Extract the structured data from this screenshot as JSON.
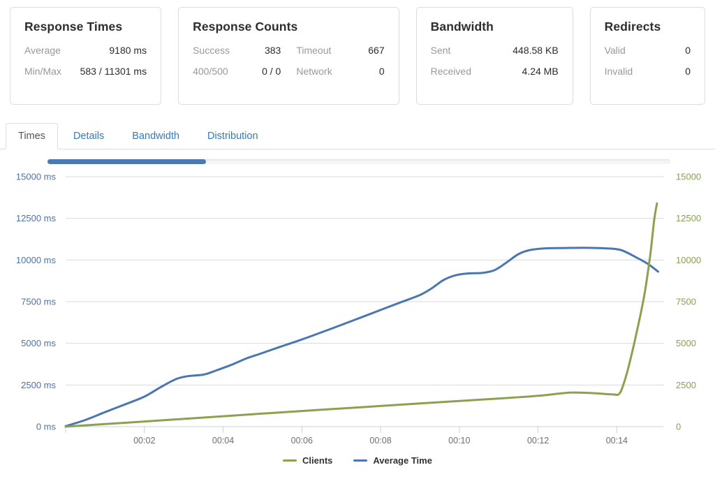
{
  "cards": {
    "response_times": {
      "title": "Response Times",
      "rows": [
        {
          "label": "Average",
          "value": "9180 ms"
        },
        {
          "label": "Min/Max",
          "value": "583 / 11301 ms"
        }
      ]
    },
    "response_counts": {
      "title": "Response Counts",
      "cells": [
        {
          "label": "Success",
          "value": "383"
        },
        {
          "label": "Timeout",
          "value": "667"
        },
        {
          "label": "400/500",
          "value": "0 / 0"
        },
        {
          "label": "Network",
          "value": "0"
        }
      ]
    },
    "bandwidth": {
      "title": "Bandwidth",
      "rows": [
        {
          "label": "Sent",
          "value": "448.58 KB"
        },
        {
          "label": "Received",
          "value": "4.24 MB"
        }
      ]
    },
    "redirects": {
      "title": "Redirects",
      "rows": [
        {
          "label": "Valid",
          "value": "0"
        },
        {
          "label": "Invalid",
          "value": "0"
        }
      ]
    }
  },
  "tabs": [
    {
      "label": "Times",
      "active": true
    },
    {
      "label": "Details",
      "active": false
    },
    {
      "label": "Bandwidth",
      "active": false
    },
    {
      "label": "Distribution",
      "active": false
    }
  ],
  "progress": {
    "percent": 25.5,
    "fill_color": "#4a79b6",
    "track_color": "#f5f5f5"
  },
  "chart_data": {
    "type": "line",
    "title": "",
    "grid": true,
    "legend_position": "bottom-center",
    "x_axis": {
      "unit": "mm:ss elapsed",
      "tick_labels": [
        "00:02",
        "00:04",
        "00:06",
        "00:08",
        "00:10",
        "00:12",
        "00:14"
      ],
      "tick_minutes": [
        2,
        4,
        6,
        8,
        10,
        12,
        14
      ],
      "range_minutes": [
        0,
        15.2
      ],
      "label_color": "#6e6e6e",
      "axis_color": "#c5cfe2",
      "grid_color": "#d9d9d9"
    },
    "y_left": {
      "title": "Average Time (ms)",
      "tick_values": [
        0,
        2500,
        5000,
        7500,
        10000,
        12500,
        15000
      ],
      "tick_suffix": " ms",
      "range": [
        0,
        15000
      ],
      "color": "#4e71a4"
    },
    "y_right": {
      "title": "Clients",
      "tick_values": [
        0,
        2500,
        5000,
        7500,
        10000,
        12500,
        15000
      ],
      "tick_suffix": "",
      "range": [
        0,
        15000
      ],
      "color": "#87a24e"
    },
    "series": [
      {
        "name": "Clients",
        "color": "#8aa14f",
        "axis": "right",
        "points": [
          [
            0,
            0
          ],
          [
            1,
            155
          ],
          [
            2,
            310
          ],
          [
            3,
            465
          ],
          [
            4,
            625
          ],
          [
            5,
            785
          ],
          [
            6,
            940
          ],
          [
            7,
            1090
          ],
          [
            8,
            1240
          ],
          [
            9,
            1390
          ],
          [
            10,
            1540
          ],
          [
            11,
            1690
          ],
          [
            11.6,
            1780
          ],
          [
            12.1,
            1870
          ],
          [
            12.6,
            2000
          ],
          [
            12.9,
            2050
          ],
          [
            13.4,
            2010
          ],
          [
            13.9,
            1930
          ],
          [
            14.05,
            1950
          ],
          [
            14.15,
            2400
          ],
          [
            14.3,
            3600
          ],
          [
            14.5,
            5600
          ],
          [
            14.7,
            7900
          ],
          [
            14.85,
            10300
          ],
          [
            14.95,
            12400
          ],
          [
            15.02,
            13400
          ]
        ]
      },
      {
        "name": "Average Time",
        "color": "#4a76b2",
        "axis": "left",
        "points": [
          [
            0,
            30
          ],
          [
            0.5,
            400
          ],
          [
            1,
            870
          ],
          [
            1.5,
            1330
          ],
          [
            2,
            1800
          ],
          [
            2.4,
            2350
          ],
          [
            2.8,
            2850
          ],
          [
            3.1,
            3030
          ],
          [
            3.5,
            3120
          ],
          [
            3.8,
            3350
          ],
          [
            4.2,
            3700
          ],
          [
            4.6,
            4100
          ],
          [
            5,
            4420
          ],
          [
            5.5,
            4830
          ],
          [
            6,
            5230
          ],
          [
            6.5,
            5660
          ],
          [
            7,
            6100
          ],
          [
            7.5,
            6550
          ],
          [
            8,
            7000
          ],
          [
            8.5,
            7450
          ],
          [
            9,
            7900
          ],
          [
            9.3,
            8300
          ],
          [
            9.6,
            8800
          ],
          [
            9.9,
            9080
          ],
          [
            10.2,
            9190
          ],
          [
            10.6,
            9230
          ],
          [
            10.9,
            9400
          ],
          [
            11.2,
            9850
          ],
          [
            11.5,
            10350
          ],
          [
            11.8,
            10600
          ],
          [
            12.2,
            10700
          ],
          [
            12.7,
            10720
          ],
          [
            13.2,
            10730
          ],
          [
            13.7,
            10700
          ],
          [
            14.1,
            10600
          ],
          [
            14.5,
            10150
          ],
          [
            14.8,
            9750
          ],
          [
            15.05,
            9300
          ]
        ]
      }
    ]
  }
}
